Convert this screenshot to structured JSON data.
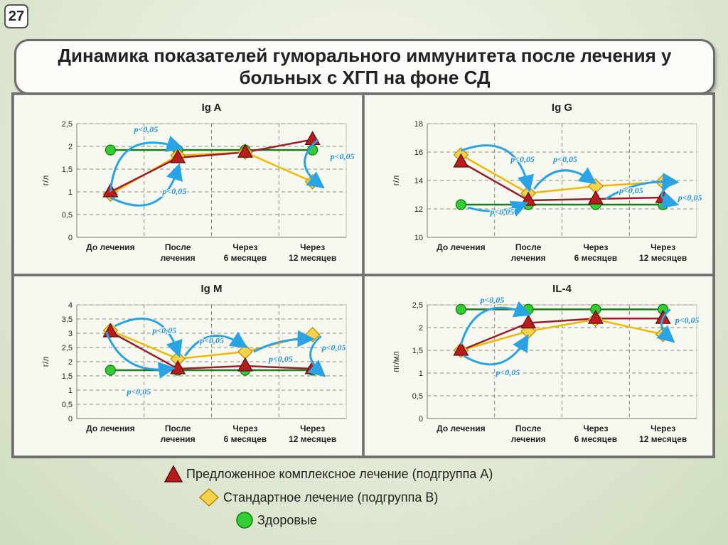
{
  "slide_number": "27",
  "title": "Динамика показателей гуморального иммунитета после лечения у больных с ХГП на фоне СД",
  "legend": {
    "a": "Предложенное комплексное лечение (подгруппа А)",
    "b": "Стандартное лечение (подгруппа В)",
    "h": "Здоровые"
  },
  "colors": {
    "a_line": "#9b1c2a",
    "a_marker": "#8b1a1a",
    "b_line": "#f2b800",
    "b_marker": "#f4c542",
    "h_line": "#1e7a1e",
    "h_marker": "#2fbf2f",
    "arrow": "#29a3e6"
  },
  "chart_data": [
    {
      "type": "line",
      "title": "Ig A",
      "ylabel": "г/л",
      "categories": [
        "До лечения",
        "После лечения",
        "Через 6 месяцев",
        "Через 12 месяцев"
      ],
      "ylim": [
        0,
        2.5
      ],
      "yticks": [
        "0",
        "0,5",
        "1",
        "1,5",
        "2",
        "2,5"
      ],
      "series": [
        {
          "name": "Предложенное комплексное лечение (подгруппа А)",
          "values": [
            1.0,
            1.75,
            1.87,
            2.15
          ]
        },
        {
          "name": "Стандартное лечение (подгруппа В)",
          "values": [
            0.95,
            1.8,
            1.87,
            1.22
          ]
        },
        {
          "name": "Здоровые",
          "values": [
            1.92,
            1.92,
            1.92,
            1.92
          ]
        }
      ],
      "annotations": [
        "p<0,05",
        "p<0,05",
        "p<0,05"
      ]
    },
    {
      "type": "line",
      "title": "Ig G",
      "ylabel": "г/л",
      "categories": [
        "До лечения",
        "После лечения",
        "Через 6 месяцев",
        "Через 12 месяцев"
      ],
      "ylim": [
        10,
        18
      ],
      "yticks": [
        "10",
        "12",
        "14",
        "16",
        "18"
      ],
      "series": [
        {
          "name": "Предложенное комплексное лечение (подгруппа А)",
          "values": [
            15.3,
            12.6,
            12.7,
            12.8
          ]
        },
        {
          "name": "Стандартное лечение (подгруппа В)",
          "values": [
            15.8,
            13.1,
            13.6,
            13.9
          ]
        },
        {
          "name": "Здоровые",
          "values": [
            12.3,
            12.3,
            12.3,
            12.3
          ]
        }
      ],
      "annotations": [
        "p<0,05",
        "p<0,05",
        "p<0,05",
        "p<0,05",
        "p<0,05"
      ]
    },
    {
      "type": "line",
      "title": "Ig M",
      "ylabel": "г/л",
      "categories": [
        "До лечения",
        "После лечения",
        "Через 6 месяцев",
        "Через 12 месяцев"
      ],
      "ylim": [
        0,
        4
      ],
      "yticks": [
        "0",
        "0,5",
        "1",
        "1,5",
        "2",
        "2,5",
        "3",
        "3,5",
        "4"
      ],
      "series": [
        {
          "name": "Предложенное комплексное лечение (подгруппа А)",
          "values": [
            3.05,
            1.75,
            1.85,
            1.75
          ]
        },
        {
          "name": "Стандартное лечение (подгруппа В)",
          "values": [
            3.1,
            2.1,
            2.35,
            2.95
          ]
        },
        {
          "name": "Здоровые",
          "values": [
            1.7,
            1.7,
            1.7,
            1.7
          ]
        }
      ],
      "annotations": [
        "p<0,05",
        "p<0,05",
        "p<0,05",
        "p<0,05",
        "p<0,05"
      ]
    },
    {
      "type": "line",
      "title": "IL-4",
      "ylabel": "пг/мл",
      "categories": [
        "До лечения",
        "После лечения",
        "Через 6 месяцев",
        "Через 12 месяцев"
      ],
      "ylim": [
        0,
        2.5
      ],
      "yticks": [
        "0",
        "0,5",
        "1",
        "1,5",
        "2",
        "2,5"
      ],
      "series": [
        {
          "name": "Предложенное комплексное лечение (подгруппа А)",
          "values": [
            1.5,
            2.1,
            2.2,
            2.2
          ]
        },
        {
          "name": "Стандартное лечение (подгруппа В)",
          "values": [
            1.5,
            1.92,
            2.18,
            1.85
          ]
        },
        {
          "name": "Здоровые",
          "values": [
            2.4,
            2.4,
            2.4,
            2.4
          ]
        }
      ],
      "annotations": [
        "p<0,05",
        "p<0,05",
        "p<0,05"
      ]
    }
  ]
}
